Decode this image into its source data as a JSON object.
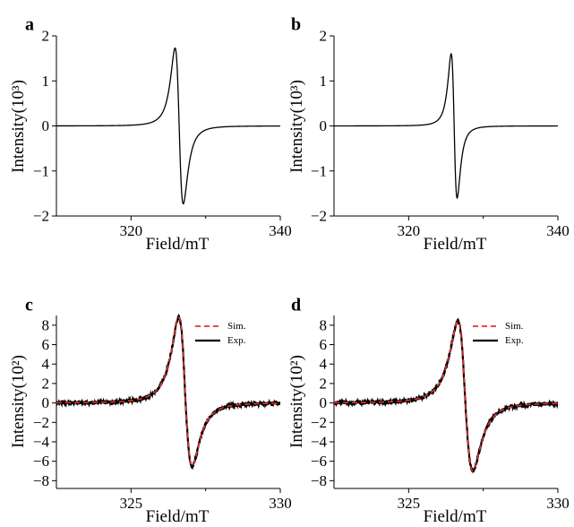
{
  "chart_data": [
    {
      "panel": "a",
      "type": "line",
      "xlabel": "Field/mT",
      "ylabel": "Intensity(10³)",
      "xlim": [
        310,
        340
      ],
      "ylim": [
        -2,
        2
      ],
      "xticks": [
        320,
        340
      ],
      "yticks": [
        2,
        1,
        0,
        -1,
        -2
      ],
      "ytick_labels": [
        "2",
        "1",
        "0",
        "−1",
        "−2"
      ],
      "curve": {
        "center": 326.5,
        "peak_field": 325.9,
        "peak_value": 1.73,
        "trough_field": 327.0,
        "trough_value": -1.73
      },
      "color": "#000000"
    },
    {
      "panel": "b",
      "type": "line",
      "xlabel": "Field/mT",
      "ylabel": "Intensity(10³)",
      "xlim": [
        310,
        340
      ],
      "ylim": [
        -2,
        2
      ],
      "xticks": [
        320,
        340
      ],
      "yticks": [
        2,
        1,
        0,
        -1,
        -2
      ],
      "ytick_labels": [
        "2",
        "1",
        "0",
        "−1",
        "−2"
      ],
      "curve": {
        "center": 326.1,
        "peak_field": 325.7,
        "peak_value": 1.6,
        "trough_field": 326.5,
        "trough_value": -1.6
      },
      "color": "#000000"
    },
    {
      "panel": "c",
      "type": "line",
      "xlabel": "Field/mT",
      "ylabel": "Intensity(10²)",
      "xlim": [
        322.5,
        330
      ],
      "ylim": [
        -8.8,
        9
      ],
      "xticks": [
        325,
        330
      ],
      "yticks": [
        8,
        6,
        4,
        2,
        0,
        -2,
        -4,
        -6,
        -8
      ],
      "ytick_labels": [
        "8",
        "6",
        "4",
        "2",
        "0",
        "−2",
        "−4",
        "−6",
        "−8"
      ],
      "series": [
        {
          "name": "Sim.",
          "style": "dashed",
          "color": "#e8302a",
          "peak_field": 326.6,
          "peak_value": 8.8,
          "trough_field": 327.05,
          "trough_value": -6.5
        },
        {
          "name": "Exp.",
          "style": "solid",
          "color": "#000000",
          "peak_field": 326.6,
          "peak_value": 8.8,
          "trough_field": 327.05,
          "trough_value": -6.5
        }
      ],
      "legend": "top-right"
    },
    {
      "panel": "d",
      "type": "line",
      "xlabel": "Field/mT",
      "ylabel": "Intensity(10²)",
      "xlim": [
        322.5,
        330
      ],
      "ylim": [
        -8.8,
        9
      ],
      "xticks": [
        325,
        330
      ],
      "yticks": [
        8,
        6,
        4,
        2,
        0,
        -2,
        -4,
        -6,
        -8
      ],
      "ytick_labels": [
        "8",
        "6",
        "4",
        "2",
        "0",
        "−2",
        "−4",
        "−6",
        "−8"
      ],
      "series": [
        {
          "name": "Sim.",
          "style": "dashed",
          "color": "#e8302a",
          "peak_field": 326.65,
          "peak_value": 8.4,
          "trough_field": 327.15,
          "trough_value": -7.0
        },
        {
          "name": "Exp.",
          "style": "solid",
          "color": "#000000",
          "peak_field": 326.65,
          "peak_value": 8.4,
          "trough_field": 327.15,
          "trough_value": -7.0
        }
      ],
      "legend": "top-right"
    }
  ]
}
